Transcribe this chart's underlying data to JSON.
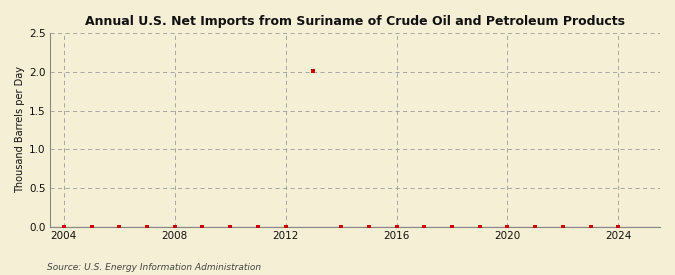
{
  "title": "Annual U.S. Net Imports from Suriname of Crude Oil and Petroleum Products",
  "ylabel": "Thousand Barrels per Day",
  "source": "Source: U.S. Energy Information Administration",
  "xlim": [
    2003.5,
    2025.5
  ],
  "ylim": [
    0,
    2.5
  ],
  "yticks": [
    0.0,
    0.5,
    1.0,
    1.5,
    2.0,
    2.5
  ],
  "xticks": [
    2004,
    2008,
    2012,
    2016,
    2020,
    2024
  ],
  "background_color": "#f5efd5",
  "plot_bg_color": "#f5efd5",
  "grid_color": "#999999",
  "data_color": "#cc0000",
  "years": [
    2004,
    2005,
    2006,
    2007,
    2008,
    2009,
    2010,
    2011,
    2012,
    2013,
    2014,
    2015,
    2016,
    2017,
    2018,
    2019,
    2020,
    2021,
    2022,
    2023,
    2024
  ],
  "values": [
    0,
    0,
    0,
    0,
    0,
    0,
    0,
    0,
    0,
    2.01,
    0,
    0,
    0,
    0,
    0,
    0,
    0,
    0,
    0,
    0,
    0
  ]
}
